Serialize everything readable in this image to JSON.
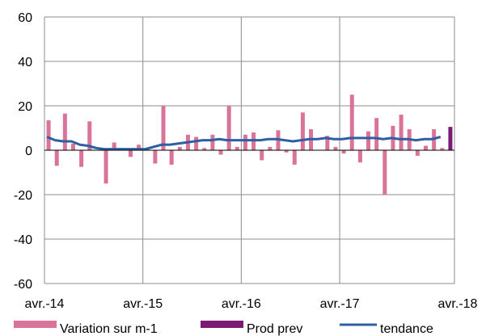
{
  "chart_data": {
    "type": "bar",
    "xlabel": "",
    "ylabel": "",
    "ylim": [
      -60,
      60
    ],
    "yticks": [
      -60,
      -40,
      -20,
      0,
      20,
      40,
      60
    ],
    "x_tick_labels": [
      "avr.-14",
      "avr.-15",
      "avr.-16",
      "avr.-17",
      "avr.-18"
    ],
    "grid": true,
    "legend_position": "bottom",
    "series": [
      {
        "name": "Variation sur m-1",
        "type": "bar",
        "color": "#d9739a",
        "values": [
          13.5,
          -7,
          16.5,
          3,
          -7.5,
          13,
          0,
          -15,
          3.5,
          1,
          -3,
          2.5,
          1,
          -6,
          20,
          -6.5,
          1.5,
          7,
          6,
          1,
          7,
          -2,
          20,
          1.5,
          7,
          8,
          -4.5,
          1.5,
          9,
          -1,
          -6.5,
          17,
          9.5,
          0,
          6.5,
          1.5,
          -1.5,
          25,
          -5.5,
          8.5,
          14.5,
          -20,
          11,
          16,
          9.5,
          -2.5,
          2,
          9.5,
          1
        ]
      },
      {
        "name": "Prod prev",
        "type": "bar",
        "color": "#7b1a72",
        "values": [
          10.5
        ]
      },
      {
        "name": "tendance",
        "type": "line",
        "color": "#2e5fa3",
        "values": [
          6,
          4.5,
          4,
          4,
          2.5,
          2,
          1,
          0.5,
          0.5,
          0.5,
          0.5,
          0.5,
          0.5,
          1.5,
          2.5,
          2.5,
          3,
          3.5,
          4,
          4.5,
          4.5,
          5,
          4.5,
          4.5,
          4.5,
          4.5,
          4.5,
          5,
          5,
          4.5,
          4,
          4.5,
          5,
          5,
          5.5,
          5,
          5,
          5.5,
          5.5,
          5.5,
          5.5,
          5,
          5.5,
          5,
          5,
          4.5,
          5,
          5,
          6
        ]
      }
    ]
  }
}
